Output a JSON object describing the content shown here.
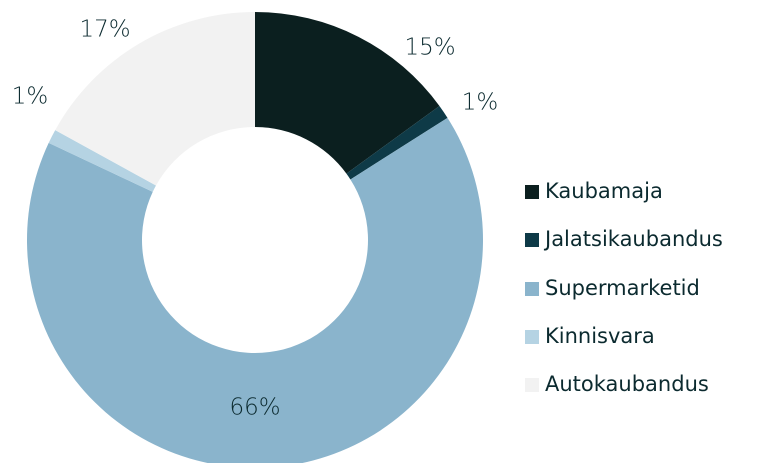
{
  "chart_data": {
    "type": "donut",
    "categories": [
      "Kaubamaja",
      "Jalatsikaubandus",
      "Supermarketid",
      "Kinnisvara",
      "Autokaubandus"
    ],
    "values": [
      15,
      1,
      66,
      1,
      17
    ],
    "value_labels": [
      "15%",
      "1%",
      "66%",
      "1%",
      "17%"
    ],
    "colors": [
      "#0b1f1f",
      "#0e3a47",
      "#8ab4cc",
      "#b5d3e3",
      "#f2f2f2"
    ],
    "legend": "right"
  }
}
